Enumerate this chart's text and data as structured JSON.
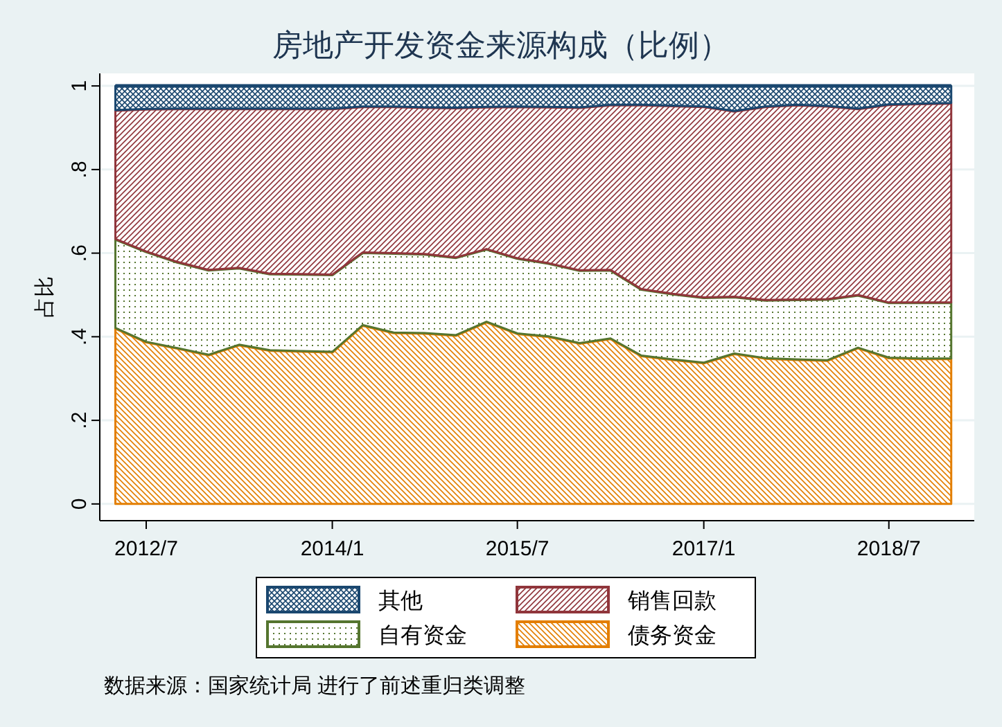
{
  "chart_data": {
    "type": "area",
    "stacked": true,
    "title": "房地产开发资金来源构成（比例）",
    "ylabel": "占比",
    "x": [
      "2012-04",
      "2012-07",
      "2012-10",
      "2013-01",
      "2013-04",
      "2013-07",
      "2013-10",
      "2014-01",
      "2014-04",
      "2014-07",
      "2014-10",
      "2015-01",
      "2015-04",
      "2015-07",
      "2015-10",
      "2016-01",
      "2016-04",
      "2016-07",
      "2016-10",
      "2017-01",
      "2017-04",
      "2017-07",
      "2017-10",
      "2018-01",
      "2018-04",
      "2018-07",
      "2018-10",
      "2019-01"
    ],
    "series": [
      {
        "name": "债务资金",
        "color": "#e37e00",
        "values": [
          0.421,
          0.388,
          0.373,
          0.357,
          0.381,
          0.368,
          0.366,
          0.364,
          0.428,
          0.41,
          0.409,
          0.404,
          0.436,
          0.408,
          0.401,
          0.385,
          0.396,
          0.355,
          0.346,
          0.338,
          0.36,
          0.349,
          0.346,
          0.344,
          0.374,
          0.35,
          0.348,
          0.348
        ]
      },
      {
        "name": "自有资金",
        "color": "#55752f",
        "values": [
          0.213,
          0.216,
          0.206,
          0.203,
          0.184,
          0.183,
          0.184,
          0.185,
          0.174,
          0.19,
          0.189,
          0.186,
          0.174,
          0.18,
          0.175,
          0.174,
          0.164,
          0.159,
          0.157,
          0.156,
          0.136,
          0.139,
          0.143,
          0.146,
          0.126,
          0.132,
          0.134,
          0.134
        ]
      },
      {
        "name": "销售回款",
        "color": "#90353b",
        "values": [
          0.308,
          0.341,
          0.367,
          0.386,
          0.381,
          0.395,
          0.396,
          0.397,
          0.349,
          0.351,
          0.351,
          0.358,
          0.34,
          0.363,
          0.374,
          0.39,
          0.395,
          0.441,
          0.45,
          0.457,
          0.444,
          0.463,
          0.466,
          0.462,
          0.446,
          0.474,
          0.476,
          0.477
        ]
      },
      {
        "name": "其他",
        "color": "#1a476f",
        "values": [
          0.058,
          0.055,
          0.054,
          0.054,
          0.054,
          0.054,
          0.054,
          0.054,
          0.049,
          0.049,
          0.051,
          0.052,
          0.05,
          0.049,
          0.05,
          0.051,
          0.045,
          0.045,
          0.047,
          0.049,
          0.06,
          0.049,
          0.045,
          0.048,
          0.054,
          0.044,
          0.042,
          0.041
        ]
      }
    ],
    "xlim": [
      "2012-02-15",
      "2019-03-10"
    ],
    "xticks": [
      {
        "value": "2012-07",
        "label": "2012/7"
      },
      {
        "value": "2014-01",
        "label": "2014/1"
      },
      {
        "value": "2015-07",
        "label": "2015/7"
      },
      {
        "value": "2017-01",
        "label": "2017/1"
      },
      {
        "value": "2018-07",
        "label": "2018/7"
      }
    ],
    "ylim": [
      -0.04,
      1.03
    ],
    "yticks": [
      {
        "value": 0,
        "label": "0"
      },
      {
        "value": 0.2,
        "label": ".2"
      },
      {
        "value": 0.4,
        "label": ".4"
      },
      {
        "value": 0.6,
        "label": ".6"
      },
      {
        "value": 0.8,
        "label": ".8"
      },
      {
        "value": 1,
        "label": "1"
      }
    ],
    "grid": "y",
    "legend": "bottom",
    "annotations": [
      "数据来源：国家统计局 进行了前述重归类调整"
    ]
  }
}
